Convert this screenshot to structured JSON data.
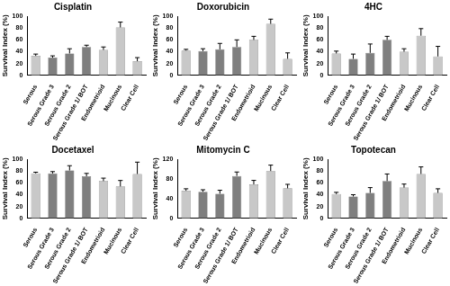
{
  "chart_data": [
    {
      "type": "bar",
      "title": "Cisplatin",
      "y_label": "Survival Index (%)",
      "categories": [
        "Serous",
        "Serous Grade 3",
        "Serous Grade 2",
        "Serous Grade 1/ BOT",
        "Endometrioid",
        "Mucinous",
        "Clear Cell"
      ],
      "values": [
        33,
        30,
        37,
        48,
        43,
        81,
        24
      ],
      "errors": [
        3,
        3,
        8,
        3,
        5,
        9,
        6
      ],
      "colors": [
        "#c8c8c8",
        "#7f7f7f",
        "#7f7f7f",
        "#7f7f7f",
        "#c8c8c8",
        "#c8c8c8",
        "#c8c8c8"
      ],
      "ylim": [
        0,
        100
      ],
      "yticks": [
        0,
        20,
        40,
        60,
        80,
        100
      ],
      "grid": false
    },
    {
      "type": "bar",
      "title": "Doxorubicin",
      "y_label": "Survival Index (%)",
      "categories": [
        "Serous",
        "Serous Grade 3",
        "Serous Grade 2",
        "Serous Grade 1/ BOT",
        "Endometrioid",
        "Mucinous",
        "Clear Cell"
      ],
      "values": [
        42,
        41,
        44,
        48,
        60,
        87,
        28
      ],
      "errors": [
        2,
        4,
        10,
        12,
        6,
        8,
        10
      ],
      "colors": [
        "#c8c8c8",
        "#7f7f7f",
        "#7f7f7f",
        "#7f7f7f",
        "#c8c8c8",
        "#c8c8c8",
        "#c8c8c8"
      ],
      "ylim": [
        0,
        100
      ],
      "yticks": [
        0,
        20,
        40,
        60,
        80,
        100
      ],
      "grid": false
    },
    {
      "type": "bar",
      "title": "4HC",
      "y_label": "Survival Index (%)",
      "categories": [
        "Serous",
        "Serous Grade 3",
        "Serous Grade 2",
        "Serous Grade 1/ BOT",
        "Endometrioid",
        "Mucinous",
        "Clear Cell"
      ],
      "values": [
        37,
        28,
        38,
        60,
        40,
        67,
        32
      ],
      "errors": [
        4,
        8,
        15,
        6,
        5,
        12,
        17
      ],
      "colors": [
        "#c8c8c8",
        "#7f7f7f",
        "#7f7f7f",
        "#7f7f7f",
        "#c8c8c8",
        "#c8c8c8",
        "#c8c8c8"
      ],
      "ylim": [
        0,
        100
      ],
      "yticks": [
        0,
        20,
        40,
        60,
        80,
        100
      ],
      "grid": false
    },
    {
      "type": "bar",
      "title": "Docetaxel",
      "y_label": "Survival Index (%)",
      "categories": [
        "Serous",
        "Serous Grade 3",
        "Serous Grade 2",
        "Serous Grade 1/ BOT",
        "Endometrioid",
        "Mucinous",
        "Clear Cell"
      ],
      "values": [
        76,
        76,
        81,
        71,
        63,
        54,
        75
      ],
      "errors": [
        2,
        3,
        8,
        5,
        5,
        10,
        20
      ],
      "colors": [
        "#c8c8c8",
        "#7f7f7f",
        "#7f7f7f",
        "#7f7f7f",
        "#c8c8c8",
        "#c8c8c8",
        "#c8c8c8"
      ],
      "ylim": [
        0,
        100
      ],
      "yticks": [
        0,
        20,
        40,
        60,
        80,
        100
      ],
      "grid": false
    },
    {
      "type": "bar",
      "title": "Mitomycin C",
      "y_label": "Survival Index (%)",
      "categories": [
        "Serous",
        "Serous Grade 3",
        "Serous Grade 2",
        "Serous Grade 1/ BOT",
        "Endometrioid",
        "Mucinous",
        "Clear Cell"
      ],
      "values": [
        56,
        54,
        50,
        86,
        69,
        96,
        61
      ],
      "errors": [
        4,
        4,
        7,
        8,
        8,
        12,
        8
      ],
      "colors": [
        "#c8c8c8",
        "#7f7f7f",
        "#7f7f7f",
        "#7f7f7f",
        "#c8c8c8",
        "#c8c8c8",
        "#c8c8c8"
      ],
      "ylim": [
        0,
        120
      ],
      "yticks": [
        0,
        40,
        80,
        120
      ],
      "grid": false
    },
    {
      "type": "bar",
      "title": "Topotecan",
      "y_label": "Survival Index (%)",
      "categories": [
        "Serous",
        "Serous Grade 3",
        "Serous Grade 2",
        "Serous Grade 1/ BOT",
        "Endometrioid",
        "Mucinous",
        "Clear Cell"
      ],
      "values": [
        41,
        37,
        43,
        63,
        52,
        75,
        43
      ],
      "errors": [
        3,
        3,
        9,
        12,
        6,
        12,
        7
      ],
      "colors": [
        "#c8c8c8",
        "#7f7f7f",
        "#7f7f7f",
        "#7f7f7f",
        "#c8c8c8",
        "#c8c8c8",
        "#c8c8c8"
      ],
      "ylim": [
        0,
        100
      ],
      "yticks": [
        0,
        20,
        40,
        60,
        80,
        100
      ],
      "grid": false
    }
  ]
}
